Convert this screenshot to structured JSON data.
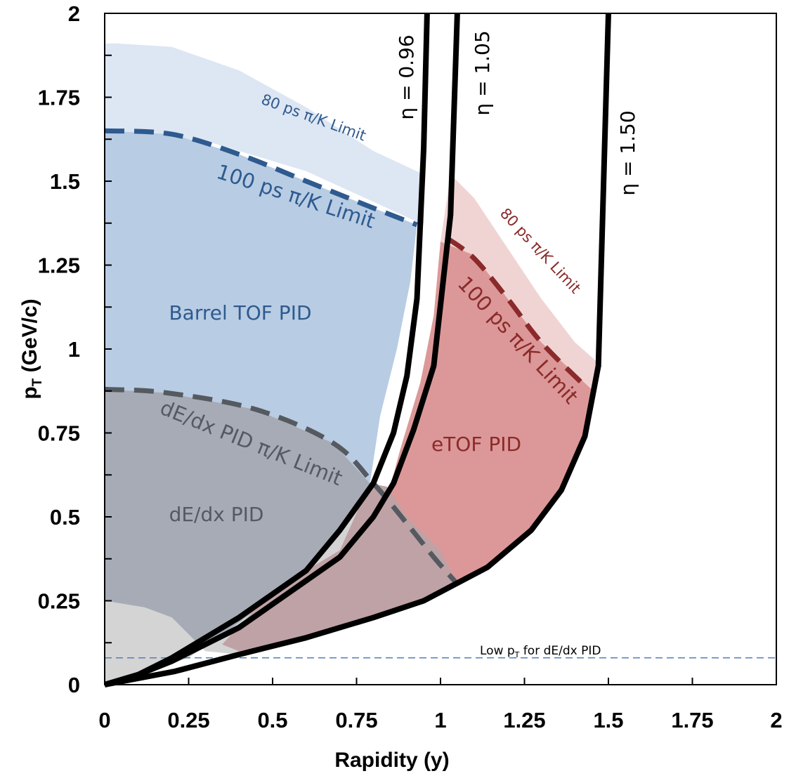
{
  "chart_data": {
    "type": "area",
    "xlabel": "Rapidity (y)",
    "ylabel_main": "p",
    "ylabel_sub": "T",
    "ylabel_rest": " (GeV/c)",
    "xlim": [
      0,
      2
    ],
    "ylim": [
      0,
      2
    ],
    "x_ticks": [
      "0",
      "0.25",
      "0.5",
      "0.75",
      "1",
      "1.25",
      "1.5",
      "1.75",
      "2"
    ],
    "y_ticks": [
      "0",
      "0.25",
      "0.5",
      "0.75",
      "1",
      "1.25",
      "1.5",
      "1.75",
      "2"
    ],
    "regions": [
      {
        "name": "barrel-80ps-region",
        "color": "#dde6f3",
        "points": [
          [
            0,
            0.26
          ],
          [
            0,
            1.91
          ],
          [
            0.04,
            1.91
          ],
          [
            0.2,
            1.9
          ],
          [
            0.4,
            1.83
          ],
          [
            0.6,
            1.72
          ],
          [
            0.8,
            1.59
          ],
          [
            0.95,
            1.52
          ],
          [
            0.95,
            1.37
          ],
          [
            0.6,
            1.53
          ],
          [
            0.3,
            1.62
          ],
          [
            0,
            1.65
          ]
        ]
      },
      {
        "name": "barrel-tof-region",
        "color": "#b8cce4",
        "points": [
          [
            0,
            0.26
          ],
          [
            0,
            1.65
          ],
          [
            0.2,
            1.64
          ],
          [
            0.4,
            1.58
          ],
          [
            0.6,
            1.5
          ],
          [
            0.8,
            1.42
          ],
          [
            0.93,
            1.37
          ],
          [
            0.91,
            1.2
          ],
          [
            0.87,
            1.0
          ],
          [
            0.82,
            0.8
          ],
          [
            0.79,
            0.6
          ],
          [
            0.68,
            0.72
          ],
          [
            0.45,
            0.82
          ],
          [
            0.18,
            0.87
          ],
          [
            0,
            0.88
          ]
        ]
      },
      {
        "name": "dedx-region",
        "color": "#a6abb6",
        "points": [
          [
            0,
            0.88
          ],
          [
            0.18,
            0.87
          ],
          [
            0.45,
            0.82
          ],
          [
            0.68,
            0.72
          ],
          [
            0.79,
            0.6
          ],
          [
            0.72,
            0.48
          ],
          [
            0.62,
            0.36
          ],
          [
            0.5,
            0.26
          ],
          [
            0.38,
            0.17
          ],
          [
            0.3,
            0.1
          ],
          [
            0.2,
            0.2
          ],
          [
            0.12,
            0.23
          ],
          [
            0,
            0.25
          ]
        ]
      },
      {
        "name": "dedx-low-region",
        "color": "#d4d4d4",
        "points": [
          [
            0,
            0.25
          ],
          [
            0.12,
            0.23
          ],
          [
            0.2,
            0.2
          ],
          [
            0.3,
            0.1
          ],
          [
            0.4,
            0.09
          ],
          [
            0.5,
            0.12
          ],
          [
            0.8,
            0.2
          ],
          [
            0.96,
            0.25
          ],
          [
            1.05,
            0.3
          ],
          [
            1.0,
            0.4
          ],
          [
            0.9,
            0.5
          ],
          [
            0.84,
            0.59
          ],
          [
            0.79,
            0.6
          ],
          [
            0.72,
            0.48
          ],
          [
            0.62,
            0.36
          ],
          [
            0.5,
            0.26
          ],
          [
            0.38,
            0.17
          ],
          [
            0.25,
            0.08
          ],
          [
            0.1,
            0.03
          ],
          [
            0,
            0
          ]
        ]
      },
      {
        "name": "etof-region",
        "color": "#dc9898",
        "points": [
          [
            1.0,
            1.32
          ],
          [
            1.1,
            1.28
          ],
          [
            1.2,
            1.15
          ],
          [
            1.3,
            1.02
          ],
          [
            1.45,
            0.88
          ],
          [
            1.43,
            0.74
          ],
          [
            1.36,
            0.58
          ],
          [
            1.27,
            0.46
          ],
          [
            1.14,
            0.35
          ],
          [
            1.05,
            0.3
          ],
          [
            0.96,
            0.25
          ],
          [
            0.8,
            0.2
          ],
          [
            0.5,
            0.12
          ],
          [
            0.4,
            0.1
          ],
          [
            0.35,
            0.12
          ],
          [
            0.5,
            0.28
          ],
          [
            0.7,
            0.4
          ],
          [
            0.82,
            0.52
          ],
          [
            0.85,
            0.59
          ],
          [
            0.88,
            0.7
          ],
          [
            0.94,
            0.9
          ],
          [
            0.98,
            1.1
          ]
        ]
      },
      {
        "name": "etof-overlap-region",
        "color": "#bfa2a6",
        "points": [
          [
            0.79,
            0.6
          ],
          [
            0.84,
            0.59
          ],
          [
            0.9,
            0.5
          ],
          [
            1.0,
            0.4
          ],
          [
            1.05,
            0.3
          ],
          [
            0.96,
            0.25
          ],
          [
            0.8,
            0.2
          ],
          [
            0.5,
            0.12
          ],
          [
            0.4,
            0.1
          ],
          [
            0.35,
            0.12
          ],
          [
            0.5,
            0.28
          ],
          [
            0.7,
            0.4
          ]
        ]
      },
      {
        "name": "etof-80ps-region",
        "color": "#f0d4d4",
        "points": [
          [
            1.03,
            1.52
          ],
          [
            1.1,
            1.45
          ],
          [
            1.2,
            1.3
          ],
          [
            1.3,
            1.15
          ],
          [
            1.4,
            1.02
          ],
          [
            1.48,
            0.95
          ],
          [
            1.45,
            0.88
          ],
          [
            1.3,
            1.02
          ],
          [
            1.2,
            1.15
          ],
          [
            1.1,
            1.28
          ],
          [
            1.0,
            1.32
          ]
        ]
      }
    ],
    "dashed_limits": [
      {
        "name": "barrel-100ps-limit",
        "color": "#2e5a8e",
        "points": [
          [
            0,
            1.65
          ],
          [
            0.2,
            1.64
          ],
          [
            0.4,
            1.58
          ],
          [
            0.6,
            1.5
          ],
          [
            0.8,
            1.42
          ],
          [
            0.93,
            1.37
          ]
        ]
      },
      {
        "name": "etof-100ps-limit",
        "color": "#8b2a2a",
        "points": [
          [
            1.02,
            1.33
          ],
          [
            1.1,
            1.27
          ],
          [
            1.2,
            1.15
          ],
          [
            1.3,
            1.02
          ],
          [
            1.43,
            0.89
          ]
        ]
      },
      {
        "name": "dedx-limit",
        "color": "#555a60",
        "points": [
          [
            0,
            0.88
          ],
          [
            0.18,
            0.87
          ],
          [
            0.45,
            0.82
          ],
          [
            0.68,
            0.72
          ],
          [
            0.8,
            0.6
          ],
          [
            0.9,
            0.48
          ],
          [
            0.98,
            0.38
          ],
          [
            1.05,
            0.3
          ]
        ]
      }
    ],
    "eta_curves": [
      {
        "label": "η = 0.96",
        "points": [
          [
            0,
            0
          ],
          [
            0.1,
            0.03
          ],
          [
            0.2,
            0.08
          ],
          [
            0.4,
            0.2
          ],
          [
            0.6,
            0.34
          ],
          [
            0.7,
            0.46
          ],
          [
            0.8,
            0.6
          ],
          [
            0.86,
            0.75
          ],
          [
            0.9,
            0.92
          ],
          [
            0.93,
            1.15
          ],
          [
            0.95,
            1.6
          ],
          [
            0.96,
            2.0
          ]
        ]
      },
      {
        "label": "η = 1.05",
        "points": [
          [
            0,
            0
          ],
          [
            0.1,
            0.03
          ],
          [
            0.2,
            0.07
          ],
          [
            0.4,
            0.17
          ],
          [
            0.6,
            0.31
          ],
          [
            0.7,
            0.38
          ],
          [
            0.8,
            0.5
          ],
          [
            0.86,
            0.6
          ],
          [
            0.92,
            0.76
          ],
          [
            0.98,
            0.95
          ],
          [
            1.03,
            1.4
          ],
          [
            1.05,
            2.0
          ]
        ]
      },
      {
        "label": "η = 1.50",
        "points": [
          [
            0,
            0
          ],
          [
            0.21,
            0.04
          ],
          [
            0.4,
            0.09
          ],
          [
            0.6,
            0.14
          ],
          [
            0.8,
            0.2
          ],
          [
            0.95,
            0.25
          ],
          [
            1.14,
            0.35
          ],
          [
            1.27,
            0.46
          ],
          [
            1.36,
            0.58
          ],
          [
            1.43,
            0.74
          ],
          [
            1.47,
            0.95
          ],
          [
            1.5,
            2.0
          ]
        ]
      }
    ],
    "low_pt_line": {
      "y": 0.08,
      "color": "#4f81bd"
    },
    "labels": {
      "barrel_tof": "Barrel TOF PID",
      "dedx": "dE/dx PID",
      "etof": "eTOF PID",
      "barrel_80": "80 ps π/K Limit",
      "barrel_100": "100 ps π/K Limit",
      "etof_80": "80 ps π/K Limit",
      "etof_100": "100 ps π/K Limit",
      "dedx_limit": "dE/dx PID π/K Limit",
      "low_pt_pre": "Low p",
      "low_pt_sub": "T",
      "low_pt_post": " for dE/dx PID"
    },
    "colors": {
      "barrel_text": "#2e5a8e",
      "etof_text": "#8b2a2a",
      "dedx_text": "#555a60",
      "axis": "#000000"
    }
  }
}
